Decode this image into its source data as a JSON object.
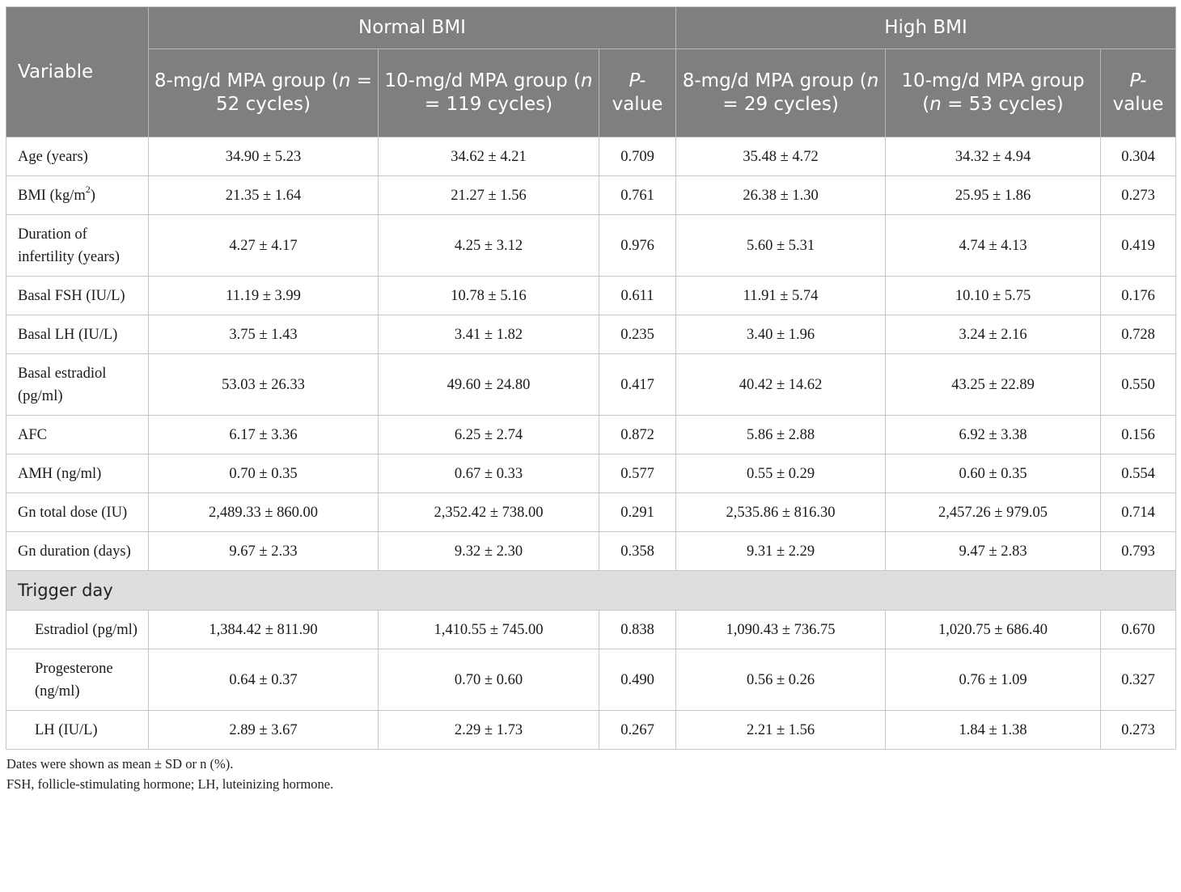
{
  "header": {
    "variable": "Variable",
    "groups": [
      "Normal BMI",
      "High BMI"
    ],
    "subcols": [
      {
        "pre": "8-mg/d MPA group (",
        "italic": "n",
        "post": " = 52 cycles)"
      },
      {
        "pre": "10-mg/d MPA group (",
        "italic": "n",
        "post": " = 119 cycles)"
      },
      {
        "pre": "",
        "italic": "P-",
        "post": " value"
      },
      {
        "pre": "8-mg/d MPA group (",
        "italic": "n",
        "post": " = 29 cycles)"
      },
      {
        "pre": "10-mg/d MPA group (",
        "italic": "n",
        "post": " = 53 cycles)"
      },
      {
        "pre": "",
        "italic": "P-",
        "post": " value"
      }
    ]
  },
  "rows": [
    {
      "label": "Age (years)",
      "values": [
        "34.90 ± 5.23",
        "34.62 ± 4.21",
        "0.709",
        "35.48 ± 4.72",
        "34.32 ± 4.94",
        "0.304"
      ]
    },
    {
      "label": "BMI (kg/m",
      "label_sup": "2",
      "label_post": ")",
      "values": [
        "21.35 ± 1.64",
        "21.27 ± 1.56",
        "0.761",
        "26.38 ± 1.30",
        "25.95 ± 1.86",
        "0.273"
      ]
    },
    {
      "label": "Duration of infertility (years)",
      "values": [
        "4.27 ± 4.17",
        "4.25 ± 3.12",
        "0.976",
        "5.60 ± 5.31",
        "4.74 ± 4.13",
        "0.419"
      ]
    },
    {
      "label": "Basal FSH (IU/L)",
      "values": [
        "11.19 ± 3.99",
        "10.78 ± 5.16",
        "0.611",
        "11.91 ± 5.74",
        "10.10 ± 5.75",
        "0.176"
      ]
    },
    {
      "label": "Basal LH (IU/L)",
      "values": [
        "3.75 ± 1.43",
        "3.41 ± 1.82",
        "0.235",
        "3.40 ± 1.96",
        "3.24 ± 2.16",
        "0.728"
      ]
    },
    {
      "label": "Basal estradiol (pg/ml)",
      "values": [
        "53.03 ± 26.33",
        "49.60 ± 24.80",
        "0.417",
        "40.42 ± 14.62",
        "43.25 ± 22.89",
        "0.550"
      ]
    },
    {
      "label": "AFC",
      "values": [
        "6.17 ± 3.36",
        "6.25 ± 2.74",
        "0.872",
        "5.86 ± 2.88",
        "6.92 ± 3.38",
        "0.156"
      ]
    },
    {
      "label": "AMH (ng/ml)",
      "values": [
        "0.70 ± 0.35",
        "0.67 ± 0.33",
        "0.577",
        "0.55 ± 0.29",
        "0.60 ± 0.35",
        "0.554"
      ]
    },
    {
      "label": "Gn total dose (IU)",
      "values": [
        "2,489.33 ± 860.00",
        "2,352.42 ± 738.00",
        "0.291",
        "2,535.86 ± 816.30",
        "2,457.26 ± 979.05",
        "0.714"
      ]
    },
    {
      "label": "Gn duration (days)",
      "values": [
        "9.67 ± 2.33",
        "9.32 ± 2.30",
        "0.358",
        "9.31 ± 2.29",
        "9.47 ± 2.83",
        "0.793"
      ]
    }
  ],
  "section": "Trigger day",
  "trigger_rows": [
    {
      "label": "Estradiol (pg/ml)",
      "values": [
        "1,384.42 ± 811.90",
        "1,410.55 ± 745.00",
        "0.838",
        "1,090.43 ± 736.75",
        "1,020.75 ± 686.40",
        "0.670"
      ]
    },
    {
      "label": "Progesterone (ng/ml)",
      "values": [
        "0.64 ± 0.37",
        "0.70 ± 0.60",
        "0.490",
        "0.56 ± 0.26",
        "0.76 ± 1.09",
        "0.327"
      ]
    },
    {
      "label": "LH (IU/L)",
      "values": [
        "2.89 ± 3.67",
        "2.29 ± 1.73",
        "0.267",
        "2.21 ± 1.56",
        "1.84 ± 1.38",
        "0.273"
      ]
    }
  ],
  "notes": [
    "Dates were shown as mean ± SD or n (%).",
    "FSH, follicle-stimulating hormone; LH, luteinizing hormone."
  ]
}
